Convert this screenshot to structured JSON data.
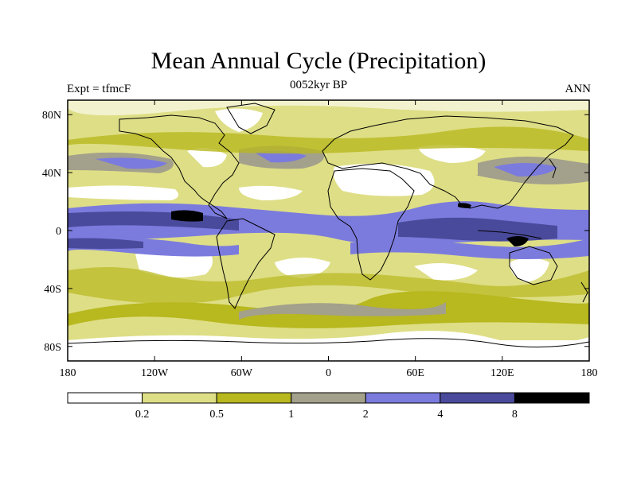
{
  "title": "Mean Annual Cycle (Precipitation)",
  "subtitle": "0052kyr BP",
  "left_label": "Expt = tfmcF",
  "right_label": "ANN",
  "map": {
    "projection": "cylindrical equidistant",
    "lon_range": [
      -180,
      180
    ],
    "lat_range": [
      -90,
      90
    ],
    "lon_ticks": [
      {
        "value": -180,
        "label": "180"
      },
      {
        "value": -120,
        "label": "120W"
      },
      {
        "value": -60,
        "label": "60W"
      },
      {
        "value": 0,
        "label": "0"
      },
      {
        "value": 60,
        "label": "60E"
      },
      {
        "value": 120,
        "label": "120E"
      },
      {
        "value": 180,
        "label": "180"
      }
    ],
    "lat_ticks": [
      {
        "value": 80,
        "label": "80N"
      },
      {
        "value": 40,
        "label": "40N"
      },
      {
        "value": 0,
        "label": "0"
      },
      {
        "value": -40,
        "label": "40S"
      },
      {
        "value": -80,
        "label": "80S"
      }
    ]
  },
  "colorbar": {
    "levels": [
      "0.2",
      "0.5",
      "1",
      "2",
      "4",
      "8"
    ],
    "colors": [
      "#ffffff",
      "#dede86",
      "#b8b81f",
      "#a3a08b",
      "#7b7bde",
      "#4a4a9c",
      "#000000"
    ]
  }
}
